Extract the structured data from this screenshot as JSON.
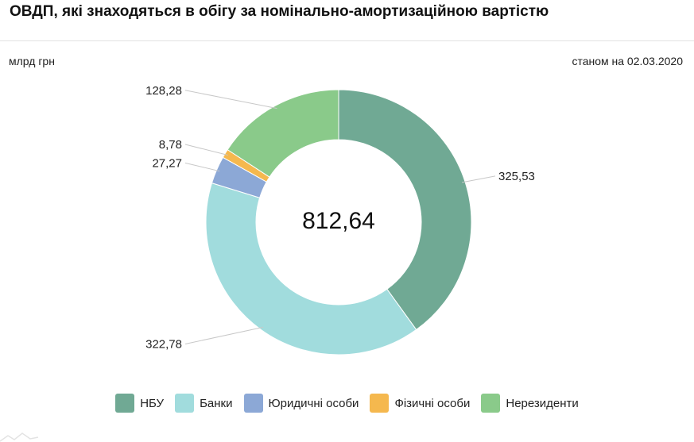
{
  "title": "ОВДП, які знаходяться в обігу за номінально-амортизаційною вартістю",
  "unit_label": "млрд грн",
  "as_of_label": "станом на 02.03.2020",
  "chart_data": {
    "type": "pie",
    "donut": true,
    "total_label": "812,64",
    "slices": [
      {
        "name": "НБУ",
        "value": 325.53,
        "label": "325,53",
        "color": "#70a994"
      },
      {
        "name": "Банки",
        "value": 322.78,
        "label": "322,78",
        "color": "#a1dcdd"
      },
      {
        "name": "Юридичні особи",
        "value": 27.27,
        "label": "27,27",
        "color": "#8ca8d6"
      },
      {
        "name": "Фізичні особи",
        "value": 8.78,
        "label": "8,78",
        "color": "#f5b84e"
      },
      {
        "name": "Нерезиденти",
        "value": 128.28,
        "label": "128,28",
        "color": "#8aca8a"
      }
    ],
    "legend_position": "bottom"
  }
}
